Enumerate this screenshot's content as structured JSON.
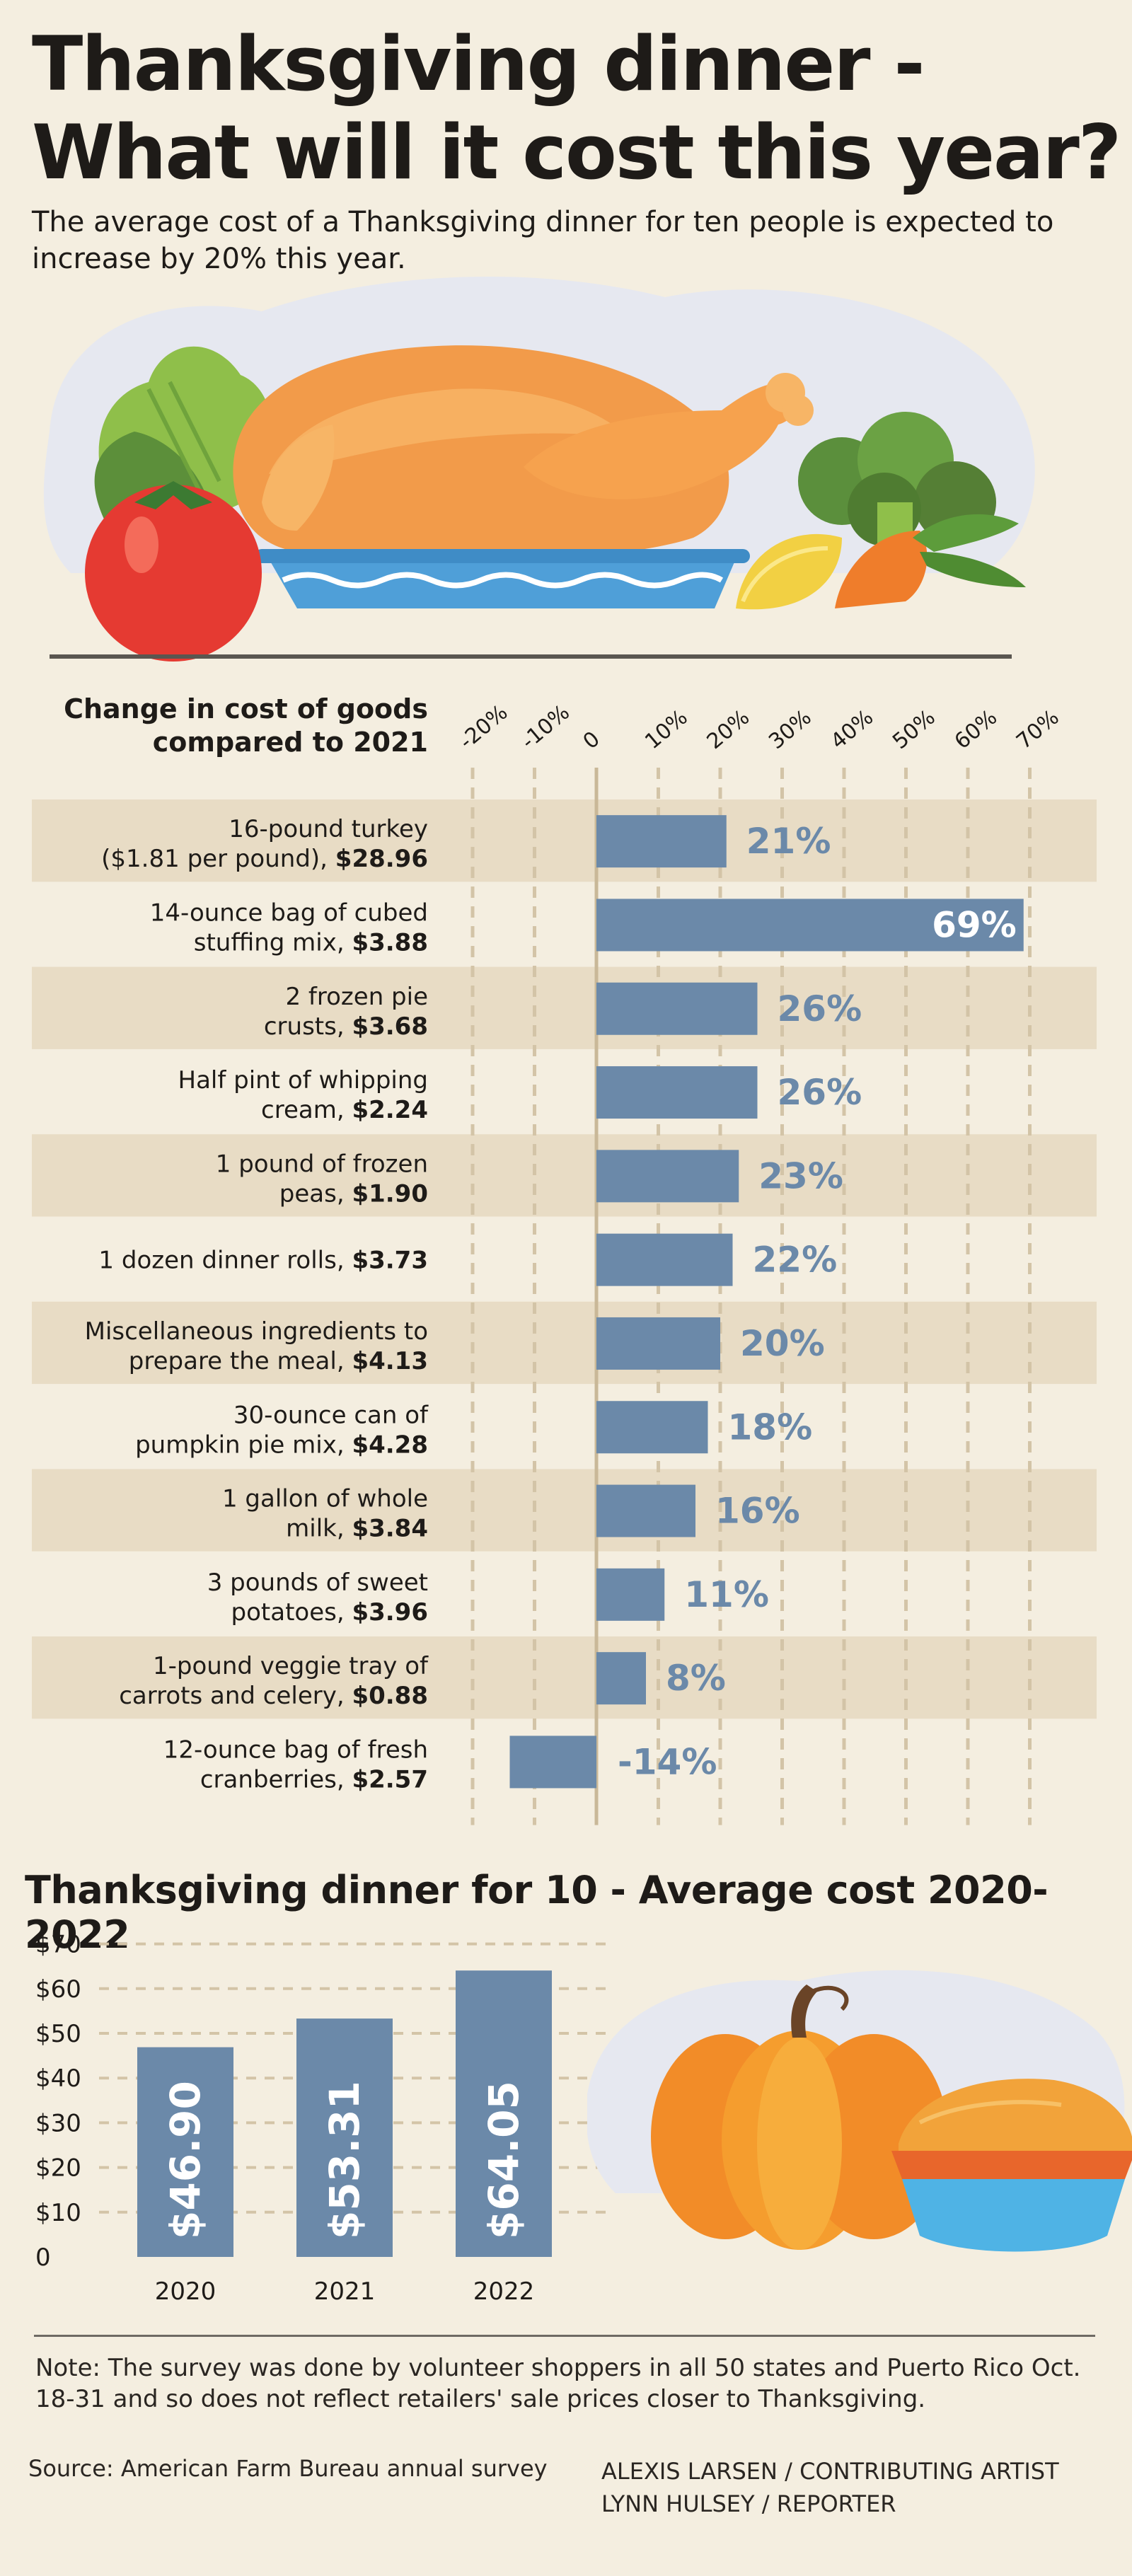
{
  "title": {
    "line1": "Thanksgiving dinner -",
    "line2": "What will it cost this year?"
  },
  "subtitle": "The average cost of a Thanksgiving dinner for ten people is expected to increase by 20% this year.",
  "colors": {
    "background": "#f4eee0",
    "row_shade": "#e8dcc5",
    "bar": "#6b89a9",
    "gridline": "#d3c4a7",
    "zero_line": "#c9b898",
    "text": "#1e1b18"
  },
  "chart_data": [
    {
      "type": "bar",
      "orientation": "horizontal",
      "title": "Change in cost of goods compared to 2021",
      "title_line1": "Change in cost of  goods",
      "title_line2": "compared to 2021",
      "xlim": [
        -20,
        70
      ],
      "ticks": [
        "-20%",
        "-10%",
        "0",
        "10%",
        "20%",
        "30%",
        "40%",
        "50%",
        "60%",
        "70%"
      ],
      "categories": [
        {
          "line1": "16-pound turkey",
          "line2_text": "($1.81 per pound), ",
          "line2_price": "$28.96"
        },
        {
          "line1": "14-ounce bag of cubed",
          "line2_text": "stuffing mix, ",
          "line2_price": "$3.88"
        },
        {
          "line1": "2 frozen pie",
          "line2_text": "crusts, ",
          "line2_price": "$3.68"
        },
        {
          "line1": "Half pint of whipping",
          "line2_text": "cream, ",
          "line2_price": "$2.24"
        },
        {
          "line1": "1 pound of frozen",
          "line2_text": "peas, ",
          "line2_price": "$1.90"
        },
        {
          "line1": "",
          "line2_text": "1 dozen dinner rolls, ",
          "line2_price": "$3.73"
        },
        {
          "line1": "Miscellaneous ingredients to",
          "line2_text": "prepare the meal, ",
          "line2_price": "$4.13"
        },
        {
          "line1": "30-ounce can of",
          "line2_text": "pumpkin pie mix, ",
          "line2_price": "$4.28"
        },
        {
          "line1": "1 gallon of whole",
          "line2_text": "milk, ",
          "line2_price": "$3.84"
        },
        {
          "line1": "3 pounds of sweet",
          "line2_text": "potatoes, ",
          "line2_price": "$3.96"
        },
        {
          "line1": "1-pound veggie tray of",
          "line2_text": "carrots and celery, ",
          "line2_price": "$0.88"
        },
        {
          "line1": "12-ounce bag of fresh",
          "line2_text": "cranberries, ",
          "line2_price": "$2.57"
        }
      ],
      "values": [
        21,
        69,
        26,
        26,
        23,
        22,
        20,
        18,
        16,
        11,
        8,
        -14
      ],
      "value_labels": [
        "21%",
        "69%",
        "26%",
        "26%",
        "23%",
        "22%",
        "20%",
        "18%",
        "16%",
        "11%",
        "8%",
        "-14%"
      ]
    },
    {
      "type": "bar",
      "orientation": "vertical",
      "title": "Thanksgiving dinner for 10 - Average cost 2020-2022",
      "categories": [
        "2020",
        "2021",
        "2022"
      ],
      "values": [
        46.9,
        53.31,
        64.05
      ],
      "value_labels": [
        "$46.90",
        "$53.31",
        "$64.05"
      ],
      "ylim": [
        0,
        70
      ],
      "yticks": [
        "0",
        "$10",
        "$20",
        "$30",
        "$40",
        "$50",
        "$60",
        "$70"
      ]
    }
  ],
  "note": "Note: The survey was done by volunteer shoppers in all 50 states and Puerto Rico Oct. 18-31 and so does not reflect retailers' sale prices closer to Thanksgiving.",
  "source": "Source: American Farm Bureau annual survey",
  "credits": [
    "ALEXIS LARSEN / CONTRIBUTING ARTIST",
    "LYNN HULSEY / REPORTER"
  ],
  "illustrations": {
    "hero": "turkey-dinner-illustration",
    "side": "pumpkin-and-pie-illustration"
  }
}
